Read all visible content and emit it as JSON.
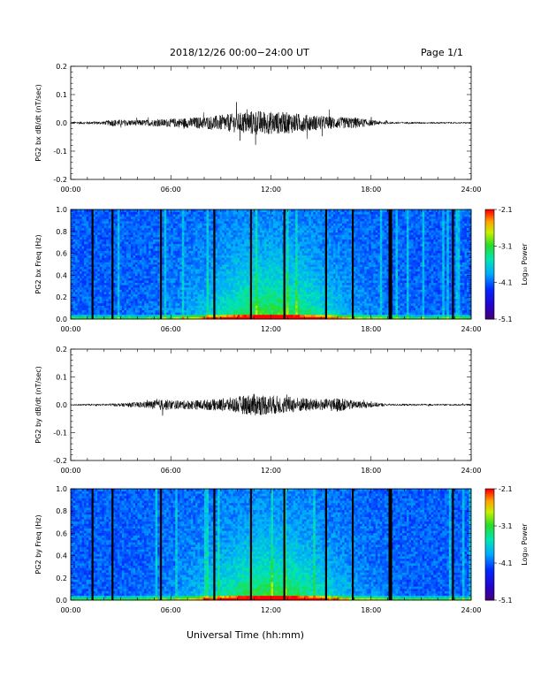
{
  "header": {
    "title": "2018/12/26  00:00−24:00 UT",
    "page": "Page 1/1"
  },
  "xlabel": "Universal Time (hh:mm)",
  "chart_data": [
    {
      "type": "line",
      "ylabel": "PG2 bx dB/dt (nT/sec)",
      "xlim": [
        0,
        24
      ],
      "ylim": [
        -0.2,
        0.2
      ],
      "xticks": [
        "00:00",
        "06:00",
        "12:00",
        "18:00",
        "24:00"
      ],
      "yticks": [
        "-0.2",
        "-0.1",
        "0.0",
        "0.1",
        "0.2"
      ],
      "envelope": [
        {
          "t": 0,
          "amp": 0.004
        },
        {
          "t": 2,
          "amp": 0.006
        },
        {
          "t": 2.5,
          "amp": 0.012
        },
        {
          "t": 4,
          "amp": 0.01
        },
        {
          "t": 5,
          "amp": 0.012
        },
        {
          "t": 6,
          "amp": 0.015
        },
        {
          "t": 7,
          "amp": 0.018
        },
        {
          "t": 8,
          "amp": 0.022
        },
        {
          "t": 9,
          "amp": 0.028
        },
        {
          "t": 10,
          "amp": 0.035
        },
        {
          "t": 11,
          "amp": 0.045
        },
        {
          "t": 12,
          "amp": 0.04
        },
        {
          "t": 13,
          "amp": 0.038
        },
        {
          "t": 14,
          "amp": 0.03
        },
        {
          "t": 15,
          "amp": 0.025
        },
        {
          "t": 16,
          "amp": 0.02
        },
        {
          "t": 17,
          "amp": 0.02
        },
        {
          "t": 18,
          "amp": 0.01
        },
        {
          "t": 19,
          "amp": 0.004
        },
        {
          "t": 24,
          "amp": 0.003
        }
      ]
    },
    {
      "type": "heatmap",
      "ylabel": "PG2 bx Freq (Hz)",
      "xlim": [
        0,
        24
      ],
      "ylim": [
        0,
        1.0
      ],
      "xticks": [
        "00:00",
        "06:00",
        "12:00",
        "18:00",
        "24:00"
      ],
      "yticks": [
        "0.0",
        "0.2",
        "0.4",
        "0.6",
        "0.8",
        "1.0"
      ],
      "colorbar": {
        "label": "Log₁₀ Power",
        "range": [
          -5.1,
          -2.1
        ],
        "ticks": [
          "-2.1",
          "-3.1",
          "-4.1",
          "-5.1"
        ]
      },
      "gaps_hours": [
        1.3,
        2.5,
        5.4,
        8.6,
        10.8,
        12.8,
        15.3,
        16.9,
        19.1,
        19.2,
        22.9
      ]
    },
    {
      "type": "line",
      "ylabel": "PG2 by dB/dt (nT/sec)",
      "xlim": [
        0,
        24
      ],
      "ylim": [
        -0.2,
        0.2
      ],
      "xticks": [
        "00:00",
        "06:00",
        "12:00",
        "18:00",
        "24:00"
      ],
      "yticks": [
        "-0.2",
        "-0.1",
        "0.0",
        "0.1",
        "0.2"
      ],
      "envelope": [
        {
          "t": 0,
          "amp": 0.003
        },
        {
          "t": 2,
          "amp": 0.004
        },
        {
          "t": 3,
          "amp": 0.006
        },
        {
          "t": 4.5,
          "amp": 0.012
        },
        {
          "t": 5.5,
          "amp": 0.02
        },
        {
          "t": 6.5,
          "amp": 0.015
        },
        {
          "t": 8,
          "amp": 0.018
        },
        {
          "t": 9,
          "amp": 0.022
        },
        {
          "t": 10,
          "amp": 0.03
        },
        {
          "t": 11,
          "amp": 0.04
        },
        {
          "t": 12,
          "amp": 0.035
        },
        {
          "t": 13,
          "amp": 0.03
        },
        {
          "t": 14,
          "amp": 0.025
        },
        {
          "t": 15,
          "amp": 0.02
        },
        {
          "t": 16,
          "amp": 0.025
        },
        {
          "t": 17,
          "amp": 0.015
        },
        {
          "t": 18,
          "amp": 0.01
        },
        {
          "t": 19,
          "amp": 0.004
        },
        {
          "t": 24,
          "amp": 0.003
        }
      ]
    },
    {
      "type": "heatmap",
      "ylabel": "PG2 by Freq (Hz)",
      "xlim": [
        0,
        24
      ],
      "ylim": [
        0,
        1.0
      ],
      "xticks": [
        "00:00",
        "06:00",
        "12:00",
        "18:00",
        "24:00"
      ],
      "yticks": [
        "0.0",
        "0.2",
        "0.4",
        "0.6",
        "0.8",
        "1.0"
      ],
      "colorbar": {
        "label": "Log₁₀ Power",
        "range": [
          -5.1,
          -2.1
        ],
        "ticks": [
          "-2.1",
          "-3.1",
          "-4.1",
          "-5.1"
        ]
      },
      "gaps_hours": [
        1.3,
        2.5,
        5.4,
        8.6,
        10.8,
        12.8,
        15.3,
        16.9,
        19.1,
        19.2,
        22.9
      ]
    }
  ]
}
